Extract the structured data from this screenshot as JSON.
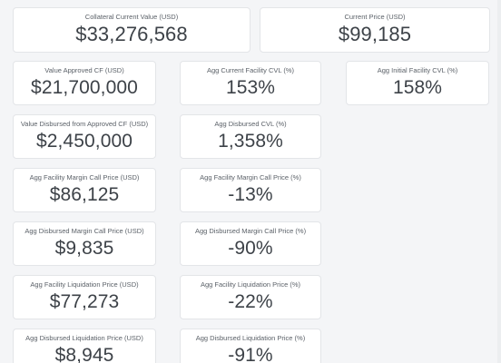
{
  "summary": {
    "collateral": {
      "label": "Collateral Current Value (USD)",
      "value": "$33,276,568"
    },
    "current_price": {
      "label": "Current Price (USD)",
      "value": "$99,185"
    }
  },
  "metrics": {
    "value_approved_cf": {
      "label": "Value Approved CF (USD)",
      "value": "$21,700,000"
    },
    "agg_current_facility_cvl": {
      "label": "Agg Current Facility CVL (%)",
      "value": "153%"
    },
    "agg_initial_facility_cvl": {
      "label": "Agg Initial Facility CVL (%)",
      "value": "158%"
    },
    "value_disbursed": {
      "label": "Value Disbursed from Approved CF (USD)",
      "value": "$2,450,000"
    },
    "agg_disbursed_cvl": {
      "label": "Agg Disbursed CVL (%)",
      "value": "1,358%"
    },
    "agg_facility_margin_call_usd": {
      "label": "Agg Facility Margin Call Price (USD)",
      "value": "$86,125"
    },
    "agg_facility_margin_call_pct": {
      "label": "Agg Facility Margin Call Price (%)",
      "value": "-13%"
    },
    "agg_disbursed_margin_call_usd": {
      "label": "Agg Disbursed Margin Call Price (USD)",
      "value": "$9,835"
    },
    "agg_disbursed_margin_call_pct": {
      "label": "Agg Disbursed Margin Call Price (%)",
      "value": "-90%"
    },
    "agg_facility_liquidation_usd": {
      "label": "Agg Facility Liquidation Price (USD)",
      "value": "$77,273"
    },
    "agg_facility_liquidation_pct": {
      "label": "Agg Facility Liquidation Price (%)",
      "value": "-22%"
    },
    "agg_disbursed_liquidation_usd": {
      "label": "Agg Disbursed Liquidation Price (USD)",
      "value": "$8,945"
    },
    "agg_disbursed_liquidation_pct": {
      "label": "Agg Disbursed Liquidation Price (%)",
      "value": "-91%"
    }
  },
  "colors": {
    "background": "#f4f5f7",
    "card": "#ffffff",
    "card_border": "#e3e5e8",
    "label_text": "#5b6168",
    "value_text": "#3d4248"
  }
}
